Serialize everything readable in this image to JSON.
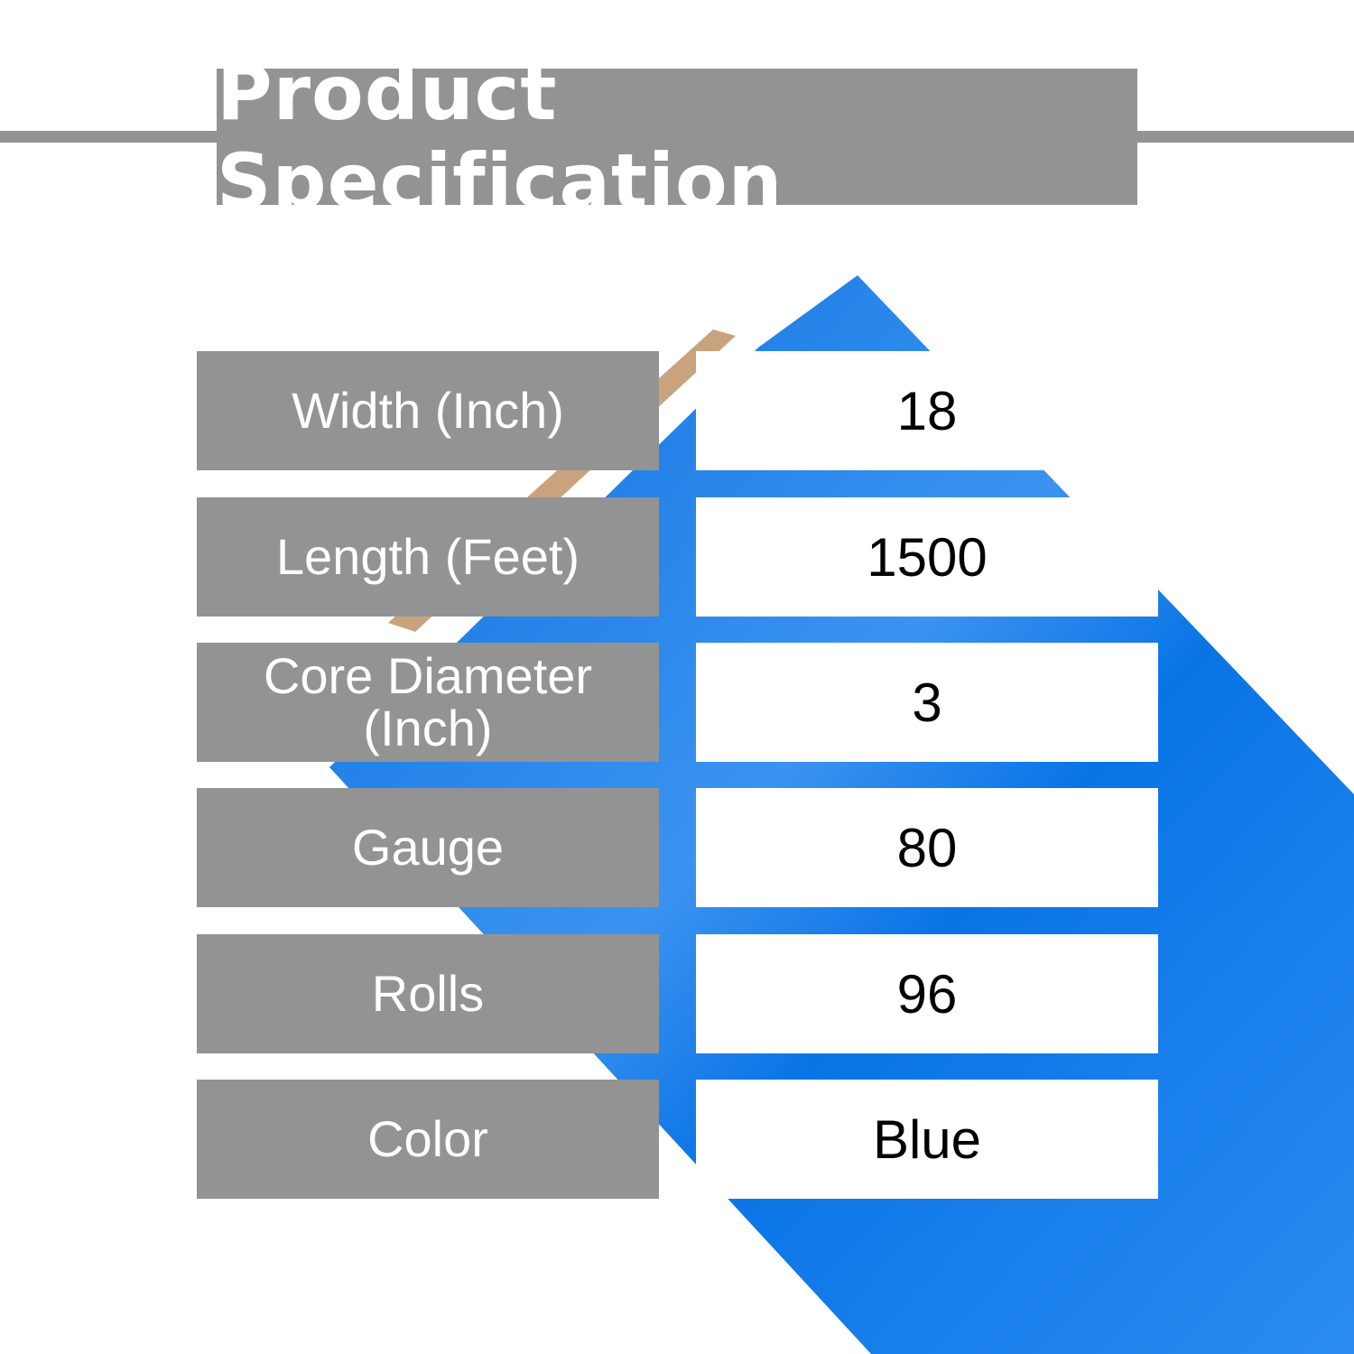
{
  "header": {
    "title": "Product Specification"
  },
  "colors": {
    "panel_gray": "#939393",
    "roll_blue": "#0a74e6",
    "core_tan": "#c9a27e"
  },
  "specs": [
    {
      "label": "Width (Inch)",
      "value": "18"
    },
    {
      "label": "Length (Feet)",
      "value": "1500"
    },
    {
      "label": "Core Diameter (Inch)",
      "value": "3"
    },
    {
      "label": "Gauge",
      "value": "80"
    },
    {
      "label": "Rolls",
      "value": "96"
    },
    {
      "label": "Color",
      "value": "Blue"
    }
  ]
}
